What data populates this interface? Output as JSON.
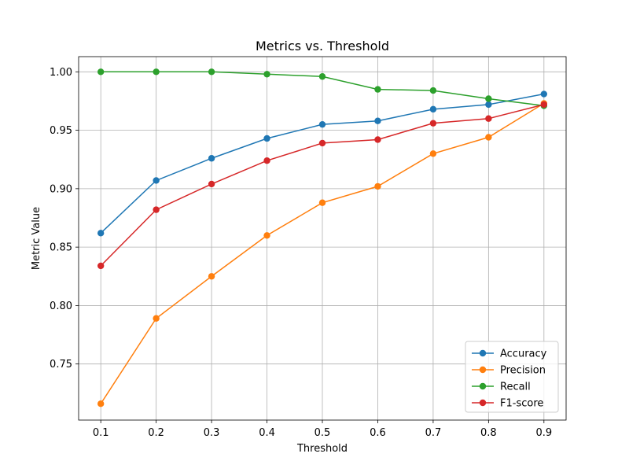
{
  "chart_data": {
    "type": "line",
    "title": "Metrics vs. Threshold",
    "xlabel": "Threshold",
    "ylabel": "Metric Value",
    "x": [
      0.1,
      0.2,
      0.3,
      0.4,
      0.5,
      0.6,
      0.7,
      0.8,
      0.9
    ],
    "x_ticks": [
      "0.1",
      "0.2",
      "0.3",
      "0.4",
      "0.5",
      "0.6",
      "0.7",
      "0.8",
      "0.9"
    ],
    "xlim": [
      0.06,
      0.94
    ],
    "ylim": [
      0.702,
      1.013
    ],
    "y_ticks": [
      "0.75",
      "0.80",
      "0.85",
      "0.90",
      "0.95",
      "1.00"
    ],
    "grid": true,
    "legend_position": "bottom-right",
    "series": [
      {
        "name": "Accuracy",
        "color": "#1f77b4",
        "values": [
          0.862,
          0.907,
          0.926,
          0.943,
          0.955,
          0.958,
          0.968,
          0.972,
          0.981
        ]
      },
      {
        "name": "Precision",
        "color": "#ff7f0e",
        "values": [
          0.716,
          0.789,
          0.825,
          0.86,
          0.888,
          0.902,
          0.93,
          0.944,
          0.973
        ]
      },
      {
        "name": "Recall",
        "color": "#2ca02c",
        "values": [
          1.0,
          1.0,
          1.0,
          0.998,
          0.996,
          0.985,
          0.984,
          0.977,
          0.971
        ]
      },
      {
        "name": "F1-score",
        "color": "#d62728",
        "values": [
          0.834,
          0.882,
          0.904,
          0.924,
          0.939,
          0.942,
          0.956,
          0.96,
          0.972
        ]
      }
    ]
  }
}
